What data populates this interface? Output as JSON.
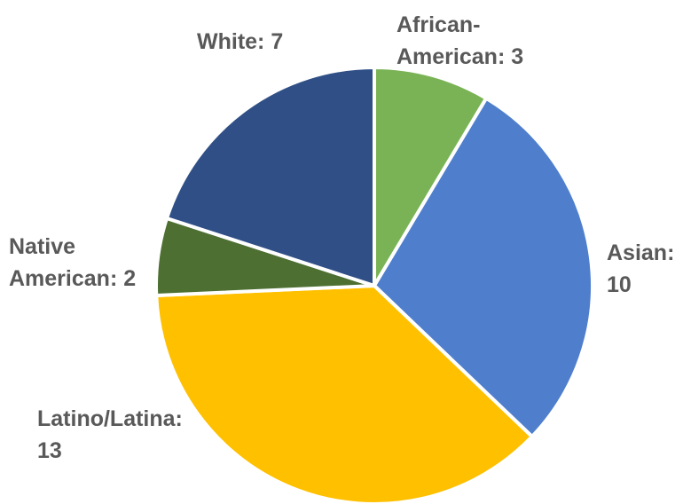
{
  "chart_data": {
    "type": "pie",
    "title": "",
    "start_angle_deg": 0,
    "direction": "clockwise",
    "slices": [
      {
        "label": "African-American",
        "value": 3,
        "color": "#7ab355",
        "label_lines": [
          "African-",
          "American: 3"
        ]
      },
      {
        "label": "Asian",
        "value": 10,
        "color": "#4f7fcc",
        "label_lines": [
          "Asian:",
          "10"
        ]
      },
      {
        "label": "Latino/Latina",
        "value": 13,
        "color": "#ffc000",
        "label_lines": [
          "Latino/Latina:",
          "13"
        ]
      },
      {
        "label": "Native American",
        "value": 2,
        "color": "#4d7032",
        "label_lines": [
          "Native",
          "American: 2"
        ]
      },
      {
        "label": "White",
        "value": 7,
        "color": "#2f4f86",
        "label_lines": [
          "White: 7"
        ]
      }
    ]
  }
}
